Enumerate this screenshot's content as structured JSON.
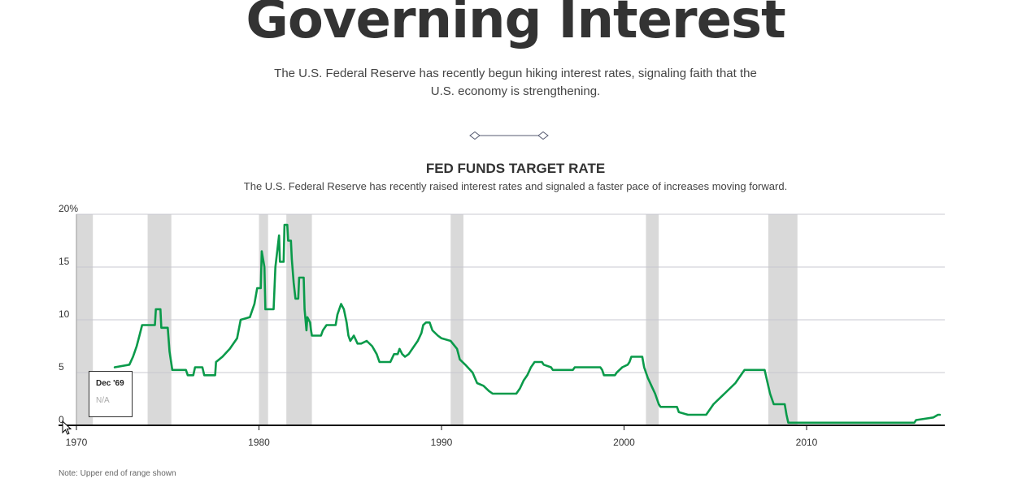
{
  "header": {
    "headline": "Governing Interest",
    "deck": "The U.S. Federal Reserve has recently begun hiking interest rates, signaling faith that the U.S. economy is strengthening."
  },
  "chart_data": {
    "type": "line",
    "title": "FED FUNDS TARGET RATE",
    "subtitle": "The U.S. Federal Reserve has recently raised interest rates and signaled a faster pace of increases moving forward.",
    "note": "Note: Upper end of range shown",
    "xlabel": "",
    "ylabel": "",
    "xlim": [
      1970,
      2017.3
    ],
    "ylim": [
      0,
      20
    ],
    "x_ticks": [
      "1970",
      "1980",
      "1990",
      "2000",
      "2010"
    ],
    "y_ticks": [
      "20%",
      "15",
      "10",
      "5",
      "0"
    ],
    "grid": true,
    "line_color": "#0a9a4a",
    "recession_color": "#d9d9d9",
    "recessions": [
      [
        1970.0,
        1970.9
      ],
      [
        1973.9,
        1975.2
      ],
      [
        1980.0,
        1980.5
      ],
      [
        1981.5,
        1982.9
      ],
      [
        1990.5,
        1991.2
      ],
      [
        2001.2,
        2001.9
      ],
      [
        2007.9,
        2009.5
      ]
    ],
    "series": [
      {
        "points": [
          [
            1972.1,
            5.5
          ],
          [
            1972.9,
            5.75
          ],
          [
            1973.1,
            6.5
          ],
          [
            1973.3,
            7.5
          ],
          [
            1973.45,
            8.5
          ],
          [
            1973.6,
            9.5
          ],
          [
            1974.3,
            9.5
          ],
          [
            1974.35,
            11.0
          ],
          [
            1974.6,
            11.0
          ],
          [
            1974.65,
            9.25
          ],
          [
            1975.0,
            9.25
          ],
          [
            1975.1,
            7.0
          ],
          [
            1975.25,
            5.25
          ],
          [
            1976.0,
            5.25
          ],
          [
            1976.1,
            4.75
          ],
          [
            1976.4,
            4.75
          ],
          [
            1976.5,
            5.5
          ],
          [
            1976.9,
            5.5
          ],
          [
            1977.0,
            4.75
          ],
          [
            1977.6,
            4.75
          ],
          [
            1977.65,
            6.0
          ],
          [
            1978.0,
            6.5
          ],
          [
            1978.4,
            7.25
          ],
          [
            1978.8,
            8.25
          ],
          [
            1979.0,
            10.0
          ],
          [
            1979.5,
            10.25
          ],
          [
            1979.75,
            11.5
          ],
          [
            1979.9,
            13.0
          ],
          [
            1980.1,
            13.0
          ],
          [
            1980.15,
            16.5
          ],
          [
            1980.3,
            15.0
          ],
          [
            1980.35,
            11.0
          ],
          [
            1980.8,
            11.0
          ],
          [
            1980.9,
            15.0
          ],
          [
            1981.1,
            18.0
          ],
          [
            1981.15,
            15.5
          ],
          [
            1981.35,
            15.5
          ],
          [
            1981.4,
            19.0
          ],
          [
            1981.55,
            19.0
          ],
          [
            1981.6,
            17.5
          ],
          [
            1981.75,
            17.5
          ],
          [
            1981.8,
            15.75
          ],
          [
            1981.9,
            13.5
          ],
          [
            1982.0,
            12.0
          ],
          [
            1982.15,
            12.0
          ],
          [
            1982.2,
            14.0
          ],
          [
            1982.45,
            14.0
          ],
          [
            1982.5,
            11.0
          ],
          [
            1982.6,
            9.0
          ],
          [
            1982.65,
            10.25
          ],
          [
            1982.8,
            9.75
          ],
          [
            1982.85,
            9.0
          ],
          [
            1982.9,
            8.5
          ],
          [
            1983.4,
            8.5
          ],
          [
            1983.5,
            9.0
          ],
          [
            1983.7,
            9.5
          ],
          [
            1984.2,
            9.5
          ],
          [
            1984.3,
            10.5
          ],
          [
            1984.5,
            11.5
          ],
          [
            1984.65,
            11.0
          ],
          [
            1984.8,
            9.75
          ],
          [
            1984.9,
            8.5
          ],
          [
            1985.0,
            8.0
          ],
          [
            1985.2,
            8.5
          ],
          [
            1985.4,
            7.75
          ],
          [
            1985.6,
            7.75
          ],
          [
            1985.9,
            8.0
          ],
          [
            1986.2,
            7.5
          ],
          [
            1986.45,
            6.75
          ],
          [
            1986.6,
            6.0
          ],
          [
            1987.2,
            6.0
          ],
          [
            1987.4,
            6.75
          ],
          [
            1987.6,
            6.75
          ],
          [
            1987.7,
            7.25
          ],
          [
            1987.85,
            6.75
          ],
          [
            1988.0,
            6.5
          ],
          [
            1988.2,
            6.75
          ],
          [
            1988.5,
            7.5
          ],
          [
            1988.7,
            8.0
          ],
          [
            1988.9,
            8.75
          ],
          [
            1989.0,
            9.5
          ],
          [
            1989.15,
            9.75
          ],
          [
            1989.35,
            9.75
          ],
          [
            1989.5,
            9.0
          ],
          [
            1989.8,
            8.5
          ],
          [
            1990.0,
            8.25
          ],
          [
            1990.5,
            8.0
          ],
          [
            1990.85,
            7.25
          ],
          [
            1991.0,
            6.25
          ],
          [
            1991.3,
            5.75
          ],
          [
            1991.7,
            5.0
          ],
          [
            1991.95,
            4.0
          ],
          [
            1992.3,
            3.75
          ],
          [
            1992.6,
            3.25
          ],
          [
            1992.8,
            3.0
          ],
          [
            1994.1,
            3.0
          ],
          [
            1994.3,
            3.5
          ],
          [
            1994.5,
            4.25
          ],
          [
            1994.7,
            4.75
          ],
          [
            1994.9,
            5.5
          ],
          [
            1995.1,
            6.0
          ],
          [
            1995.5,
            6.0
          ],
          [
            1995.6,
            5.75
          ],
          [
            1996.0,
            5.5
          ],
          [
            1996.1,
            5.25
          ],
          [
            1997.2,
            5.25
          ],
          [
            1997.3,
            5.5
          ],
          [
            1998.7,
            5.5
          ],
          [
            1998.8,
            5.25
          ],
          [
            1998.9,
            4.75
          ],
          [
            1999.5,
            4.75
          ],
          [
            1999.6,
            5.0
          ],
          [
            1999.9,
            5.5
          ],
          [
            2000.2,
            5.75
          ],
          [
            2000.3,
            6.0
          ],
          [
            2000.4,
            6.5
          ],
          [
            2001.0,
            6.5
          ],
          [
            2001.1,
            5.5
          ],
          [
            2001.3,
            4.5
          ],
          [
            2001.5,
            3.75
          ],
          [
            2001.7,
            3.0
          ],
          [
            2001.9,
            2.0
          ],
          [
            2002.0,
            1.75
          ],
          [
            2002.9,
            1.75
          ],
          [
            2003.0,
            1.25
          ],
          [
            2003.5,
            1.0
          ],
          [
            2004.5,
            1.0
          ],
          [
            2004.7,
            1.5
          ],
          [
            2004.9,
            2.0
          ],
          [
            2005.5,
            3.0
          ],
          [
            2006.1,
            4.0
          ],
          [
            2006.5,
            5.0
          ],
          [
            2006.6,
            5.25
          ],
          [
            2007.7,
            5.25
          ],
          [
            2007.8,
            4.5
          ],
          [
            2008.0,
            3.0
          ],
          [
            2008.2,
            2.0
          ],
          [
            2008.8,
            2.0
          ],
          [
            2008.9,
            1.0
          ],
          [
            2009.0,
            0.25
          ],
          [
            2015.9,
            0.25
          ],
          [
            2016.0,
            0.5
          ],
          [
            2016.95,
            0.75
          ],
          [
            2017.2,
            1.0
          ],
          [
            2017.3,
            1.0
          ]
        ]
      }
    ]
  },
  "tooltip": {
    "date": "Dec '69",
    "value": "N/A"
  }
}
